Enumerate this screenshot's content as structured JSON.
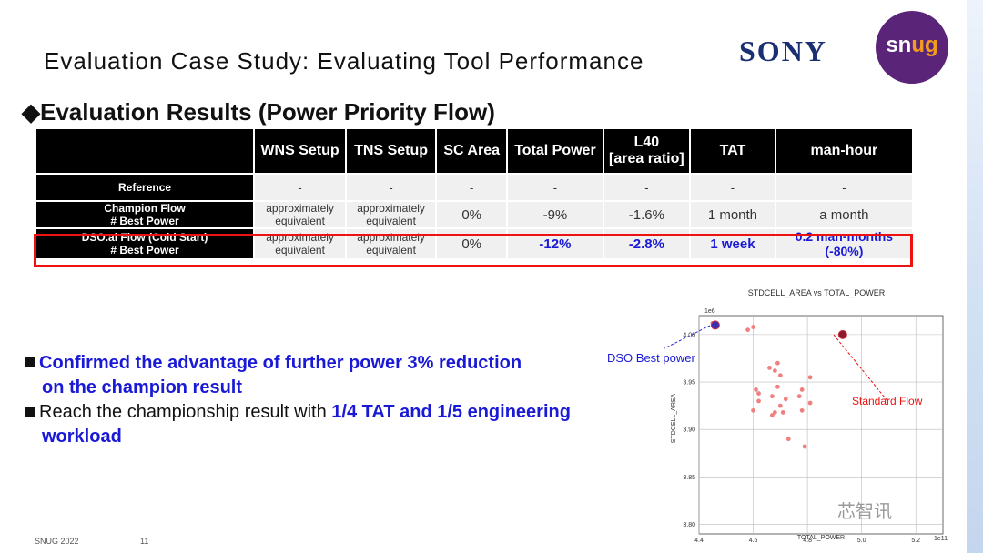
{
  "slide": {
    "title": "Evaluation Case Study: Evaluating Tool Performance",
    "subtitle": "◆Evaluation Results (Power Priority Flow)",
    "logo_sony": "SONY",
    "logo_snug_a": "sn",
    "logo_snug_b": "ug",
    "footer_left": "SNUG 2022",
    "footer_page": "11",
    "watermark": "芯智讯"
  },
  "table": {
    "headers": [
      "",
      "WNS Setup",
      "TNS Setup",
      "SC Area",
      "Total Power",
      "L40\n[area ratio]",
      "TAT",
      "man-hour"
    ],
    "rows": [
      {
        "name": "Reference",
        "cells": [
          "-",
          "-",
          "-",
          "-",
          "-",
          "-",
          "-"
        ]
      },
      {
        "name": "Champion Flow\n# Best Power",
        "cells": [
          "approximately\nequivalent",
          "approximately\nequivalent",
          "0%",
          "-9%",
          "-1.6%",
          "1 month",
          "a month"
        ]
      },
      {
        "name": "DSO.ai Flow (Cold Start)\n# Best Power",
        "cells": [
          "approximately\nequivalent",
          "approximately\nequivalent",
          "0%",
          "-12%",
          "-2.8%",
          "1 week",
          "0.2 man-months\n(-80%)"
        ]
      }
    ]
  },
  "bullets": {
    "b1": "Confirmed the advantage of further power 3% reduction",
    "b1_cont": "on the champion result",
    "b2_prefix": "Reach the championship result with ",
    "b2_blue": "1/4 TAT and 1/5 engineering",
    "b2_cont": "workload"
  },
  "annotations": {
    "dso": "DSO Best power",
    "standard": "Standard Flow"
  },
  "chart_data": {
    "type": "scatter",
    "title": "STDCELL_AREA vs TOTAL_POWER",
    "xlabel": "TOTAL_POWER",
    "ylabel": "STDCELL_AREA",
    "x_multiplier": "1e11",
    "y_multiplier": "1e6",
    "xlim": [
      4.4,
      5.3
    ],
    "ylim": [
      3.79,
      4.02
    ],
    "x_ticks": [
      4.4,
      4.6,
      4.8,
      5.0,
      5.2
    ],
    "x_tick_labels": [
      "4.4",
      "4.6",
      "4.8",
      "5.0",
      "5.2"
    ],
    "y_ticks": [
      3.8,
      3.85,
      3.9,
      3.95,
      4.0
    ],
    "y_tick_labels": [
      "3.80",
      "3.85",
      "3.90",
      "3.95",
      "4.00"
    ],
    "grid": true,
    "series": [
      {
        "color": "#f08080",
        "points": [
          [
            4.45,
            4.012
          ],
          [
            4.58,
            4.005
          ],
          [
            4.6,
            4.008
          ],
          [
            4.61,
            3.942
          ],
          [
            4.62,
            3.938
          ],
          [
            4.6,
            3.92
          ],
          [
            4.62,
            3.93
          ],
          [
            4.66,
            3.965
          ],
          [
            4.67,
            3.935
          ],
          [
            4.68,
            3.962
          ],
          [
            4.69,
            3.97
          ],
          [
            4.7,
            3.957
          ],
          [
            4.69,
            3.945
          ],
          [
            4.7,
            3.925
          ],
          [
            4.71,
            3.918
          ],
          [
            4.72,
            3.932
          ],
          [
            4.67,
            3.915
          ],
          [
            4.68,
            3.918
          ],
          [
            4.73,
            3.89
          ],
          [
            4.77,
            3.935
          ],
          [
            4.78,
            3.942
          ],
          [
            4.78,
            3.92
          ],
          [
            4.79,
            3.882
          ],
          [
            4.81,
            3.955
          ],
          [
            4.81,
            3.928
          ]
        ]
      },
      {
        "color": "#3a2fb0",
        "points": [
          [
            4.46,
            4.01
          ]
        ]
      },
      {
        "color": "#8b1a2b",
        "points": [
          [
            4.93,
            4.0
          ]
        ]
      }
    ]
  }
}
